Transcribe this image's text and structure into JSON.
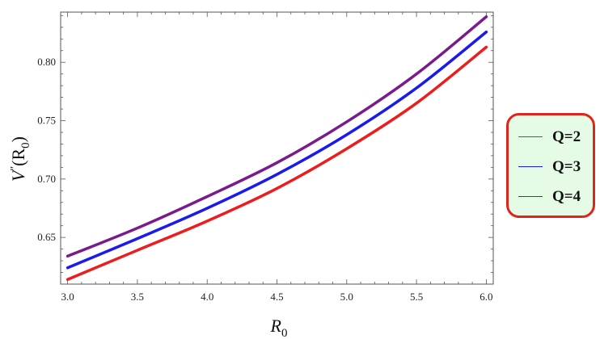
{
  "chart_data": {
    "type": "line",
    "xlabel": "R",
    "xlabel_sub": "0",
    "ylabel_main": "V",
    "ylabel_prime": "\"",
    "ylabel_open": "(R",
    "ylabel_sub": "0",
    "ylabel_close": ")",
    "xlim": [
      2.95,
      6.05
    ],
    "ylim": [
      0.61,
      0.843
    ],
    "xticks": [
      "3.0",
      "3.5",
      "4.0",
      "4.5",
      "5.0",
      "5.5",
      "6.0"
    ],
    "xtick_values": [
      3.0,
      3.5,
      4.0,
      4.5,
      5.0,
      5.5,
      6.0
    ],
    "yticks": [
      "0.65",
      "0.70",
      "0.75",
      "0.80"
    ],
    "ytick_values": [
      0.65,
      0.7,
      0.75,
      0.8
    ],
    "grid": false,
    "legend_position": "right",
    "x": [
      3.0,
      3.5,
      4.0,
      4.5,
      5.0,
      5.5,
      6.0
    ],
    "series": [
      {
        "name": "Q=2",
        "color": "#ee1c1c",
        "values": [
          0.614,
          0.639,
          0.664,
          0.692,
          0.726,
          0.765,
          0.813
        ]
      },
      {
        "name": "Q=3",
        "color": "#1a1aee",
        "values": [
          0.624,
          0.649,
          0.675,
          0.704,
          0.738,
          0.778,
          0.826
        ]
      },
      {
        "name": "Q=4",
        "color": "#7a1a8c",
        "values": [
          0.634,
          0.658,
          0.685,
          0.714,
          0.749,
          0.79,
          0.839
        ]
      }
    ]
  }
}
